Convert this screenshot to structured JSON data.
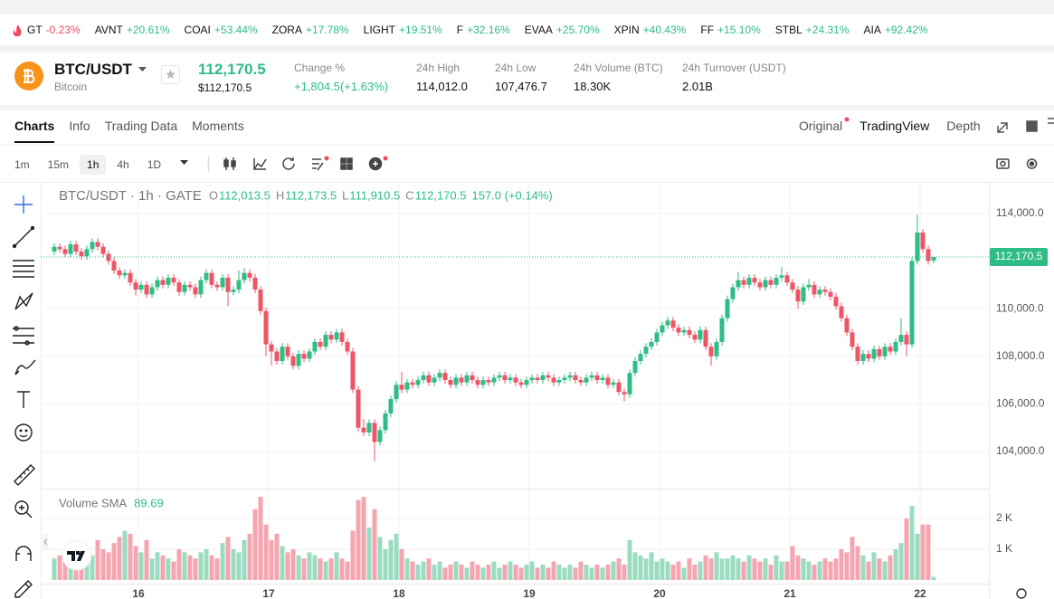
{
  "ticker": [
    {
      "symbol": "GT",
      "change": "-0.23%"
    },
    {
      "symbol": "AVNT",
      "change": "+20.61%"
    },
    {
      "symbol": "COAI",
      "change": "+53.44%"
    },
    {
      "symbol": "ZORA",
      "change": "+17.78%"
    },
    {
      "symbol": "LIGHT",
      "change": "+19.51%"
    },
    {
      "symbol": "F",
      "change": "+32.16%"
    },
    {
      "symbol": "EVAA",
      "change": "+25.70%"
    },
    {
      "symbol": "XPIN",
      "change": "+40.43%"
    },
    {
      "symbol": "FF",
      "change": "+15.10%"
    },
    {
      "symbol": "STBL",
      "change": "+24.31%"
    },
    {
      "symbol": "AIA",
      "change": "+92.42%"
    }
  ],
  "header": {
    "pair": "BTC/USDT",
    "name": "Bitcoin",
    "price": "112,170.5",
    "price_usd": "$112,170.5",
    "stats": [
      {
        "label": "Change %",
        "value": "+1,804.5(+1.63%)"
      },
      {
        "label": "24h High",
        "value": "114,012.0"
      },
      {
        "label": "24h Low",
        "value": "107,476.7"
      },
      {
        "label": "24h Volume (BTC)",
        "value": "18.30K"
      },
      {
        "label": "24h Turnover (USDT)",
        "value": "2.01B"
      }
    ]
  },
  "tabs": [
    "Charts",
    "Info",
    "Trading Data",
    "Moments"
  ],
  "views": [
    "Original",
    "TradingView",
    "Depth"
  ],
  "intervals": [
    "1m",
    "15m",
    "1h",
    "4h",
    "1D"
  ],
  "chart_data": {
    "type": "candlestick",
    "title": "BTC/USDT · 1h · GATE",
    "ohlc_legend": [
      {
        "key": "O",
        "value": "112,013.5"
      },
      {
        "key": "H",
        "value": "112,173.5"
      },
      {
        "key": "L",
        "value": "111,910.5"
      },
      {
        "key": "C",
        "value": "112,170.5"
      }
    ],
    "change": "157.0 (+0.14%)",
    "last_price_label": "112,170.5",
    "up_color": "#2ebd85",
    "down_color": "#ef5567",
    "volume_up_color": "#9bdcc1",
    "volume_down_color": "#f5a5b0",
    "xlim": [
      0,
      173
    ],
    "xticks": [
      {
        "value": 16,
        "label": "16"
      },
      {
        "value": 40,
        "label": "17"
      },
      {
        "value": 64,
        "label": "18"
      },
      {
        "value": 88,
        "label": "19"
      },
      {
        "value": 112,
        "label": "20"
      },
      {
        "value": 136,
        "label": "21"
      },
      {
        "value": 160,
        "label": "22"
      }
    ],
    "ylim": [
      102440,
      115250
    ],
    "yticks": [
      {
        "value": 104000,
        "label": "104,000.0"
      },
      {
        "value": 106000,
        "label": "106,000.0"
      },
      {
        "value": 108000,
        "label": "108,000.0"
      },
      {
        "value": 110000,
        "label": "110,000.0"
      },
      {
        "value": 114000,
        "label": "114,000.0"
      }
    ],
    "grid": true,
    "candles": [
      [
        112400,
        112750,
        112250,
        112600
      ],
      [
        112600,
        112750,
        112350,
        112500
      ],
      [
        112500,
        112650,
        112150,
        112300
      ],
      [
        112300,
        112850,
        112150,
        112700
      ],
      [
        112700,
        112850,
        112250,
        112400
      ],
      [
        112400,
        112550,
        112050,
        112200
      ],
      [
        112200,
        112650,
        112050,
        112500
      ],
      [
        112500,
        112950,
        112350,
        112800
      ],
      [
        112800,
        112950,
        112450,
        112600
      ],
      [
        112600,
        112750,
        112150,
        112300
      ],
      [
        112300,
        112450,
        111850,
        112000
      ],
      [
        112000,
        112150,
        111450,
        111600
      ],
      [
        111600,
        111750,
        111250,
        111400
      ],
      [
        111400,
        111650,
        111250,
        111500
      ],
      [
        111500,
        111650,
        110950,
        111100
      ],
      [
        111100,
        111250,
        110550,
        110800
      ],
      [
        110800,
        111150,
        110650,
        111000
      ],
      [
        111000,
        111150,
        110450,
        110600
      ],
      [
        110600,
        111050,
        110450,
        110900
      ],
      [
        110900,
        111350,
        110750,
        111200
      ],
      [
        111200,
        111350,
        110850,
        111000
      ],
      [
        111000,
        111450,
        110850,
        111300
      ],
      [
        111300,
        111450,
        110950,
        111100
      ],
      [
        111100,
        111250,
        110550,
        110700
      ],
      [
        110700,
        111150,
        110550,
        111000
      ],
      [
        111000,
        111150,
        110750,
        110900
      ],
      [
        110900,
        111050,
        110450,
        110600
      ],
      [
        110600,
        111350,
        110450,
        111200
      ],
      [
        111200,
        111650,
        111050,
        111500
      ],
      [
        111500,
        111650,
        110850,
        111000
      ],
      [
        111000,
        111150,
        110750,
        110900
      ],
      [
        110900,
        111450,
        110750,
        111300
      ],
      [
        111300,
        111450,
        110100,
        110700
      ],
      [
        110700,
        110950,
        110550,
        110800
      ],
      [
        110800,
        111600,
        110650,
        111200
      ],
      [
        111200,
        111700,
        111050,
        111500
      ],
      [
        111500,
        111650,
        111150,
        111300
      ],
      [
        111300,
        111450,
        110650,
        110800
      ],
      [
        110800,
        110950,
        109750,
        109900
      ],
      [
        109900,
        110050,
        108000,
        108500
      ],
      [
        108500,
        108650,
        107600,
        108200
      ],
      [
        108200,
        108350,
        107650,
        107800
      ],
      [
        107800,
        108550,
        107650,
        108400
      ],
      [
        108400,
        108550,
        107850,
        108000
      ],
      [
        108000,
        108150,
        107450,
        107600
      ],
      [
        107600,
        108250,
        107450,
        108100
      ],
      [
        108100,
        108250,
        107750,
        107900
      ],
      [
        107900,
        108350,
        107750,
        108200
      ],
      [
        108200,
        108750,
        108050,
        108600
      ],
      [
        108600,
        108750,
        108250,
        108400
      ],
      [
        108400,
        109050,
        108250,
        108900
      ],
      [
        108900,
        109050,
        108550,
        108700
      ],
      [
        108700,
        109150,
        108550,
        109000
      ],
      [
        109000,
        109150,
        108450,
        108600
      ],
      [
        108600,
        108750,
        108050,
        108200
      ],
      [
        108200,
        108350,
        106450,
        106600
      ],
      [
        106600,
        106750,
        104850,
        105000
      ],
      [
        105000,
        105350,
        104650,
        104800
      ],
      [
        104800,
        105350,
        104650,
        105200
      ],
      [
        105200,
        105350,
        103600,
        104400
      ],
      [
        104400,
        105050,
        104250,
        104900
      ],
      [
        104900,
        105750,
        104750,
        105600
      ],
      [
        105600,
        106350,
        105450,
        106200
      ],
      [
        106200,
        106950,
        106050,
        106800
      ],
      [
        106800,
        107350,
        106450,
        106600
      ],
      [
        106600,
        107050,
        106450,
        106900
      ],
      [
        106900,
        107050,
        106650,
        106800
      ],
      [
        106800,
        107150,
        106650,
        107000
      ],
      [
        107000,
        107350,
        106850,
        107200
      ],
      [
        107200,
        107350,
        106750,
        106900
      ],
      [
        106900,
        107250,
        106750,
        107100
      ],
      [
        107100,
        107450,
        106950,
        107300
      ],
      [
        107300,
        107450,
        106850,
        107000
      ],
      [
        107000,
        107150,
        106650,
        106800
      ],
      [
        106800,
        107250,
        106650,
        107100
      ],
      [
        107100,
        107250,
        106750,
        106900
      ],
      [
        106900,
        107350,
        106750,
        107200
      ],
      [
        107200,
        107350,
        106850,
        107000
      ],
      [
        107000,
        107150,
        106650,
        106800
      ],
      [
        106800,
        107150,
        106650,
        107000
      ],
      [
        107000,
        107150,
        106750,
        106900
      ],
      [
        106900,
        107250,
        106750,
        107100
      ],
      [
        107100,
        107350,
        106950,
        107200
      ],
      [
        107200,
        107350,
        106850,
        107000
      ],
      [
        107000,
        107250,
        106850,
        107100
      ],
      [
        107100,
        107250,
        106750,
        106900
      ],
      [
        106900,
        107050,
        106650,
        106800
      ],
      [
        106800,
        107150,
        106650,
        107000
      ],
      [
        107000,
        107250,
        106850,
        107100
      ],
      [
        107100,
        107250,
        106850,
        107000
      ],
      [
        107000,
        107350,
        106850,
        107200
      ],
      [
        107200,
        107350,
        106950,
        107100
      ],
      [
        107100,
        107250,
        106750,
        106900
      ],
      [
        106900,
        107150,
        106750,
        107000
      ],
      [
        107000,
        107250,
        106850,
        107100
      ],
      [
        107100,
        107350,
        106950,
        107200
      ],
      [
        107200,
        107350,
        106850,
        107000
      ],
      [
        107000,
        107150,
        106750,
        106900
      ],
      [
        106900,
        107250,
        106750,
        107100
      ],
      [
        107100,
        107350,
        106950,
        107200
      ],
      [
        107200,
        107350,
        106850,
        107000
      ],
      [
        107000,
        107250,
        106850,
        107100
      ],
      [
        107100,
        107250,
        106650,
        106800
      ],
      [
        106800,
        107050,
        106650,
        106900
      ],
      [
        106900,
        107050,
        106350,
        106500
      ],
      [
        106500,
        106650,
        106100,
        106400
      ],
      [
        106400,
        107450,
        106250,
        107300
      ],
      [
        107300,
        107950,
        107150,
        107800
      ],
      [
        107800,
        108250,
        107650,
        108100
      ],
      [
        108100,
        108550,
        107950,
        108400
      ],
      [
        108400,
        108750,
        108250,
        108600
      ],
      [
        108600,
        109150,
        108450,
        109000
      ],
      [
        109000,
        109450,
        108850,
        109300
      ],
      [
        109300,
        109650,
        109150,
        109500
      ],
      [
        109500,
        109650,
        109050,
        109200
      ],
      [
        109200,
        109350,
        108850,
        109000
      ],
      [
        109000,
        109250,
        108850,
        109100
      ],
      [
        109100,
        109250,
        108750,
        108900
      ],
      [
        108900,
        109050,
        108550,
        108700
      ],
      [
        108700,
        109250,
        108550,
        109100
      ],
      [
        109100,
        109250,
        108250,
        108400
      ],
      [
        108400,
        108550,
        107600,
        108000
      ],
      [
        108000,
        108750,
        107850,
        108600
      ],
      [
        108600,
        109750,
        108450,
        109600
      ],
      [
        109600,
        110550,
        109450,
        110400
      ],
      [
        110400,
        111050,
        110250,
        110900
      ],
      [
        110900,
        111550,
        110750,
        111200
      ],
      [
        111200,
        111350,
        110850,
        111000
      ],
      [
        111000,
        111450,
        110850,
        111300
      ],
      [
        111300,
        111450,
        110950,
        111100
      ],
      [
        111100,
        111250,
        110750,
        110900
      ],
      [
        110900,
        111350,
        110750,
        111200
      ],
      [
        111200,
        111350,
        110850,
        111000
      ],
      [
        111000,
        111450,
        110850,
        111300
      ],
      [
        111300,
        111750,
        111150,
        111400
      ],
      [
        111400,
        111550,
        110950,
        111100
      ],
      [
        111100,
        111250,
        110650,
        110800
      ],
      [
        110800,
        110950,
        110000,
        110300
      ],
      [
        110300,
        111050,
        110150,
        110900
      ],
      [
        110900,
        111250,
        110750,
        111000
      ],
      [
        111000,
        111150,
        110450,
        110600
      ],
      [
        110600,
        110950,
        110450,
        110800
      ],
      [
        110800,
        110950,
        110550,
        110700
      ],
      [
        110700,
        110850,
        110350,
        110500
      ],
      [
        110500,
        110650,
        109950,
        110100
      ],
      [
        110100,
        110250,
        109450,
        109600
      ],
      [
        109600,
        109750,
        108850,
        109000
      ],
      [
        109000,
        109150,
        108250,
        108400
      ],
      [
        108400,
        108550,
        107650,
        107800
      ],
      [
        107800,
        108250,
        107650,
        108100
      ],
      [
        108100,
        108250,
        107750,
        107900
      ],
      [
        107900,
        108450,
        107750,
        108300
      ],
      [
        108300,
        108450,
        107850,
        108000
      ],
      [
        108000,
        108550,
        107850,
        108400
      ],
      [
        108400,
        108550,
        108050,
        108200
      ],
      [
        108200,
        108750,
        108050,
        108600
      ],
      [
        108600,
        109600,
        108450,
        108900
      ],
      [
        108900,
        109050,
        108000,
        108500
      ],
      [
        108500,
        112150,
        108350,
        112000
      ],
      [
        112000,
        113950,
        111850,
        113200
      ],
      [
        113200,
        113350,
        112350,
        112500
      ],
      [
        112500,
        112650,
        111850,
        112000
      ],
      [
        112013.5,
        112173.5,
        111910.5,
        112170.5
      ]
    ],
    "volume_label": "Volume SMA",
    "volume_sma": "89.69",
    "volume_ylim": [
      0,
      2820
    ],
    "volume_yticks": [
      {
        "value": 1000,
        "label": "1 K"
      },
      {
        "value": 2000,
        "label": "2 K"
      }
    ],
    "volume": [
      700,
      800,
      600,
      900,
      1100,
      700,
      600,
      800,
      1300,
      1000,
      900,
      1200,
      1400,
      1600,
      1500,
      1100,
      900,
      1300,
      700,
      900,
      800,
      700,
      600,
      1000,
      900,
      800,
      700,
      900,
      1000,
      800,
      700,
      1200,
      1400,
      1000,
      900,
      1300,
      1500,
      2300,
      2700,
      1800,
      1300,
      1500,
      1100,
      900,
      1000,
      800,
      700,
      900,
      800,
      700,
      600,
      700,
      900,
      700,
      600,
      1600,
      2600,
      2700,
      1700,
      2300,
      1400,
      1000,
      1300,
      1500,
      1000,
      700,
      600,
      500,
      600,
      700,
      500,
      600,
      400,
      500,
      600,
      500,
      400,
      600,
      500,
      400,
      500,
      600,
      400,
      500,
      600,
      500,
      400,
      500,
      600,
      400,
      500,
      400,
      600,
      500,
      400,
      500,
      400,
      600,
      500,
      400,
      500,
      400,
      500,
      600,
      700,
      500,
      1300,
      900,
      800,
      700,
      900,
      600,
      700,
      600,
      500,
      600,
      400,
      700,
      500,
      600,
      800,
      700,
      900,
      700,
      700,
      800,
      700,
      600,
      800,
      700,
      600,
      700,
      500,
      800,
      600,
      600,
      1100,
      800,
      700,
      600,
      500,
      600,
      700,
      600,
      700,
      1000,
      900,
      1400,
      1100,
      800,
      600,
      900,
      700,
      600,
      800,
      1000,
      1200,
      2000,
      2400,
      1500,
      1800,
      1800,
      100
    ]
  }
}
